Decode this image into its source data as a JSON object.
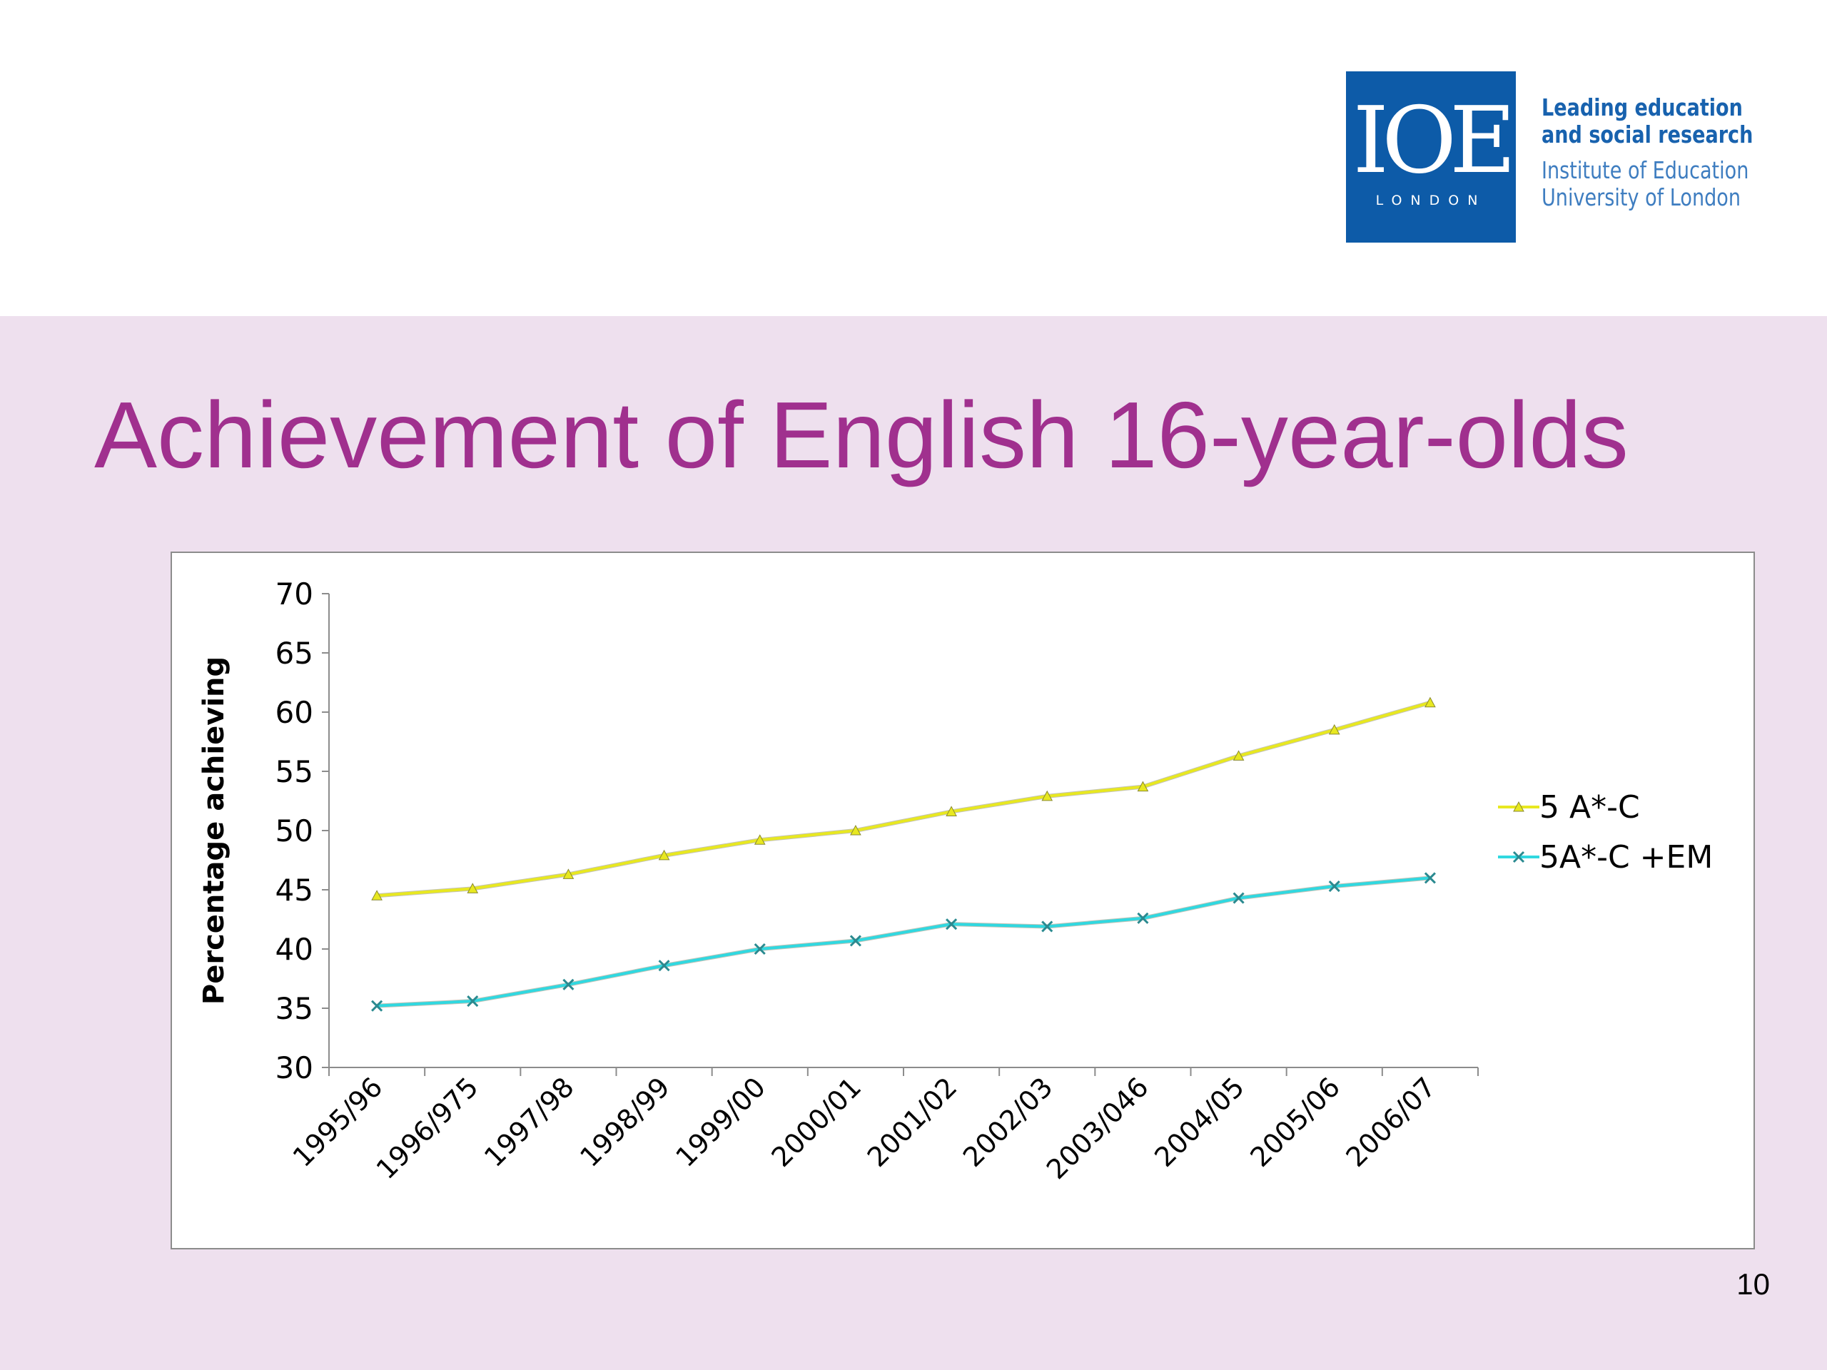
{
  "logo": {
    "mark": "IOE",
    "sub": "LONDON",
    "tagline": [
      "Leading education",
      "and social research"
    ],
    "institute": [
      "Institute of Education",
      "University of London"
    ]
  },
  "slide": {
    "title": "Achievement of English 16-year-olds",
    "page_number": "10"
  },
  "colors": {
    "title": "#a0308e",
    "band": "#eee0ee",
    "logo": "#0d5ba8",
    "series_1": "#e8e820",
    "series_2": "#30d8e0"
  },
  "chart_data": {
    "type": "line",
    "title": "",
    "xlabel": "",
    "ylabel": "Percentage achieving",
    "ylim": [
      30,
      70
    ],
    "yticks": [
      30,
      35,
      40,
      45,
      50,
      55,
      60,
      65,
      70
    ],
    "grid": false,
    "legend_position": "right",
    "categories": [
      "1995/96",
      "1996/975",
      "1997/98",
      "1998/99",
      "1999/00",
      "2000/01",
      "2001/02",
      "2002/03",
      "2003/046",
      "2004/05",
      "2005/06",
      "2006/07"
    ],
    "series": [
      {
        "name": "5 A*-C",
        "color": "#e8e820",
        "marker": "triangle",
        "values": [
          44.5,
          45.1,
          46.3,
          47.9,
          49.2,
          50.0,
          51.6,
          52.9,
          53.7,
          56.3,
          58.5,
          60.8
        ]
      },
      {
        "name": "5A*-C +EM",
        "color": "#30d8e0",
        "marker": "x",
        "values": [
          35.2,
          35.6,
          37.0,
          38.6,
          40.0,
          40.7,
          42.1,
          41.9,
          42.6,
          44.3,
          45.3,
          46.0
        ]
      }
    ]
  }
}
